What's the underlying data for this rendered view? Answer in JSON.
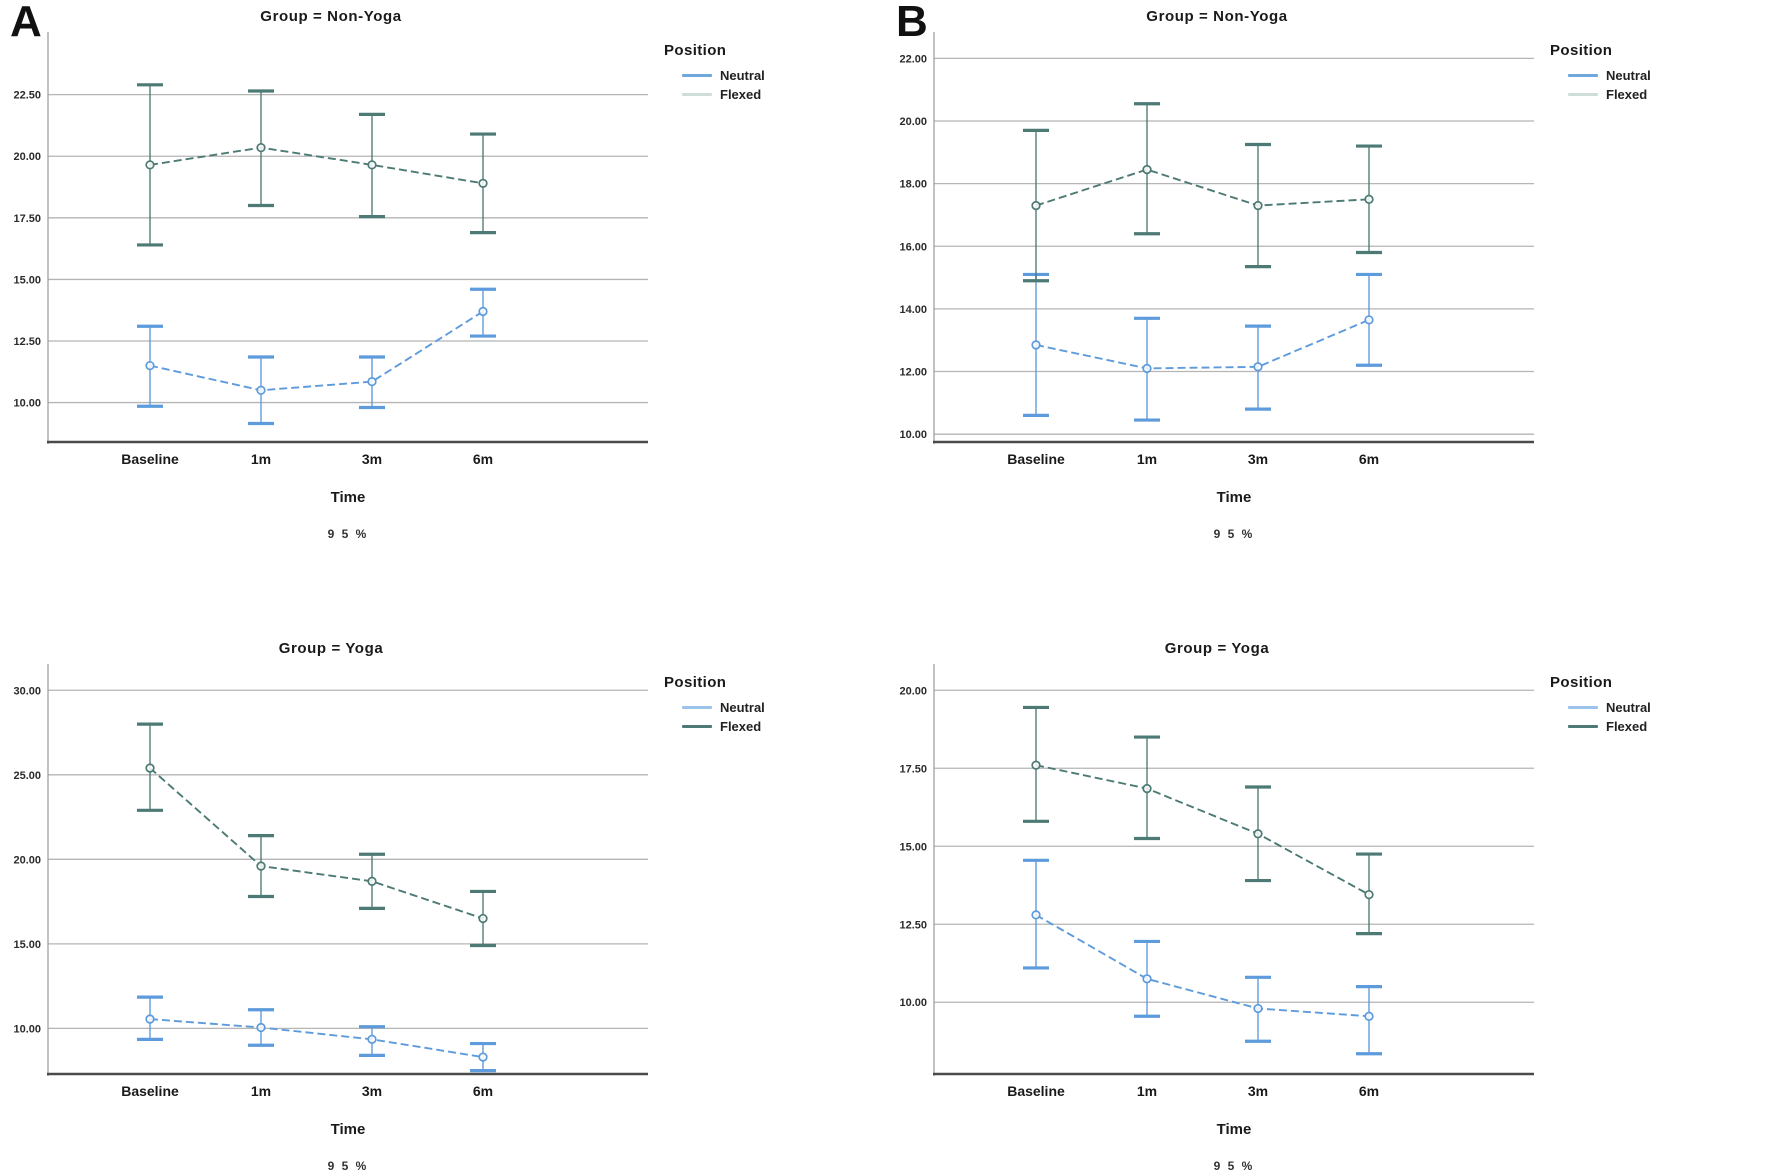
{
  "figure": {
    "panel_labels": [
      "A",
      "B"
    ],
    "background": "#ffffff"
  },
  "colors": {
    "neutral": "#5E9BDC",
    "neutral_light": "#A9CDF2",
    "flexed": "#4D7A74",
    "flexed_light": "#A9C6C1",
    "grid": "#B5B5B5",
    "axis": "#4A4A4A",
    "y_axis_line": "#9A9A9A",
    "tick_text": "#2B2B2B",
    "title_text": "#1A1A1A"
  },
  "chart_data": [
    {
      "type": "line",
      "panel": "A",
      "title": "Group = Non-Yoga",
      "xlabel": "Time",
      "footnote": "9 5 %",
      "categories": [
        "Baseline",
        "1m",
        "3m",
        "6m"
      ],
      "ylim": [
        8.4,
        24.8
      ],
      "yticks": [
        10,
        12.5,
        15,
        17.5,
        20,
        22.5
      ],
      "ytick_labels": [
        "10.00",
        "12.50",
        "15.00",
        "17.50",
        "20.00",
        "22.50"
      ],
      "grid": true,
      "legend": {
        "title": "Position",
        "position": "right",
        "entries": [
          {
            "label": "Neutral",
            "color": "#6FA8DC"
          },
          {
            "label": "Flexed",
            "color": "#CFDEDA"
          }
        ]
      },
      "series": [
        {
          "name": "Neutral",
          "color": "#5E9BDC",
          "style": "dashed",
          "values": [
            11.5,
            10.5,
            10.85,
            13.7
          ],
          "ci_low": [
            9.85,
            9.15,
            9.8,
            12.7
          ],
          "ci_high": [
            13.1,
            11.85,
            11.85,
            14.6
          ]
        },
        {
          "name": "Flexed",
          "color": "#4D7A74",
          "style": "dashed",
          "values": [
            19.65,
            20.35,
            19.65,
            18.9
          ],
          "ci_low": [
            16.4,
            18.0,
            17.55,
            16.9
          ],
          "ci_high": [
            22.9,
            22.65,
            21.7,
            20.9
          ]
        }
      ]
    },
    {
      "type": "line",
      "panel": "B",
      "title": "Group = Non-Yoga",
      "xlabel": "Time",
      "footnote": "9 5 %",
      "categories": [
        "Baseline",
        "1m",
        "3m",
        "6m"
      ],
      "ylim": [
        9.75,
        22.65
      ],
      "yticks": [
        10,
        12,
        14,
        16,
        18,
        20,
        22
      ],
      "ytick_labels": [
        "10.00",
        "12.00",
        "14.00",
        "16.00",
        "18.00",
        "20.00",
        "22.00"
      ],
      "grid": true,
      "legend": {
        "title": "Position",
        "position": "right",
        "entries": [
          {
            "label": "Neutral",
            "color": "#6FA8DC"
          },
          {
            "label": "Flexed",
            "color": "#CFDEDA"
          }
        ]
      },
      "series": [
        {
          "name": "Neutral",
          "color": "#5E9BDC",
          "style": "dashed",
          "values": [
            12.85,
            12.1,
            12.15,
            13.65
          ],
          "ci_low": [
            10.6,
            10.45,
            10.8,
            12.2
          ],
          "ci_high": [
            15.1,
            13.7,
            13.45,
            15.1
          ]
        },
        {
          "name": "Flexed",
          "color": "#4D7A74",
          "style": "dashed",
          "values": [
            17.3,
            18.45,
            17.3,
            17.5
          ],
          "ci_low": [
            14.9,
            16.4,
            15.35,
            15.8
          ],
          "ci_high": [
            19.7,
            20.55,
            19.25,
            19.2
          ]
        }
      ]
    },
    {
      "type": "line",
      "panel": "A",
      "title": "Group = Yoga",
      "xlabel": "Time",
      "footnote": "9 5 %",
      "categories": [
        "Baseline",
        "1m",
        "3m",
        "6m"
      ],
      "ylim": [
        7.3,
        31.2
      ],
      "yticks": [
        10,
        15,
        20,
        25,
        30
      ],
      "ytick_labels": [
        "10.00",
        "15.00",
        "20.00",
        "25.00",
        "30.00"
      ],
      "grid": true,
      "legend": {
        "title": "Position",
        "position": "right",
        "entries": [
          {
            "label": "Neutral",
            "color": "#9CC3EA"
          },
          {
            "label": "Flexed",
            "color": "#4D7A74"
          }
        ]
      },
      "series": [
        {
          "name": "Neutral",
          "color": "#5E9BDC",
          "style": "dashed",
          "values": [
            10.55,
            10.05,
            9.35,
            8.3
          ],
          "ci_low": [
            9.35,
            9.0,
            8.4,
            7.5
          ],
          "ci_high": [
            11.85,
            11.1,
            10.1,
            9.1
          ]
        },
        {
          "name": "Flexed",
          "color": "#4D7A74",
          "style": "dashed",
          "values": [
            25.4,
            19.6,
            18.7,
            16.5
          ],
          "ci_low": [
            22.9,
            17.8,
            17.1,
            14.9
          ],
          "ci_high": [
            28.0,
            21.4,
            20.3,
            18.1
          ]
        }
      ]
    },
    {
      "type": "line",
      "panel": "B",
      "title": "Group = Yoga",
      "xlabel": "Time",
      "footnote": "9 5 %",
      "categories": [
        "Baseline",
        "1m",
        "3m",
        "6m"
      ],
      "ylim": [
        7.7,
        20.65
      ],
      "yticks": [
        10,
        12.5,
        15,
        17.5,
        20
      ],
      "ytick_labels": [
        "10.00",
        "12.50",
        "15.00",
        "17.50",
        "20.00"
      ],
      "grid": true,
      "legend": {
        "title": "Position",
        "position": "right",
        "entries": [
          {
            "label": "Neutral",
            "color": "#9CC3EA"
          },
          {
            "label": "Flexed",
            "color": "#4D7A74"
          }
        ]
      },
      "series": [
        {
          "name": "Neutral",
          "color": "#5E9BDC",
          "style": "dashed",
          "values": [
            12.8,
            10.75,
            9.8,
            9.55
          ],
          "ci_low": [
            11.1,
            9.55,
            8.75,
            8.35
          ],
          "ci_high": [
            14.55,
            11.95,
            10.8,
            10.5
          ]
        },
        {
          "name": "Flexed",
          "color": "#4D7A74",
          "style": "dashed",
          "values": [
            17.6,
            16.85,
            15.4,
            13.45
          ],
          "ci_low": [
            15.8,
            15.25,
            13.9,
            12.2
          ],
          "ci_high": [
            19.45,
            18.5,
            16.9,
            14.75
          ]
        }
      ]
    }
  ]
}
